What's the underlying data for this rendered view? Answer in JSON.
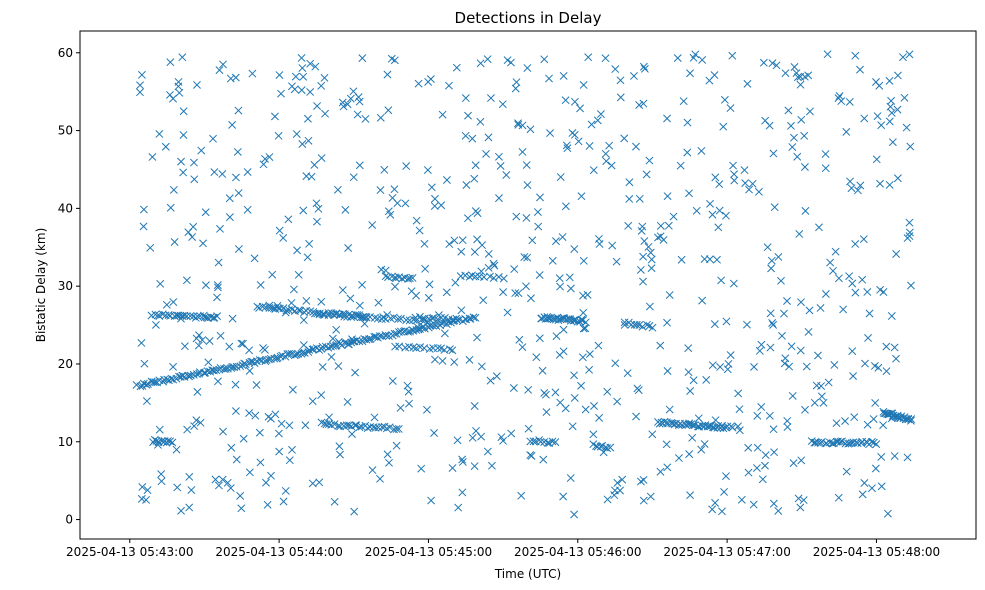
{
  "chart_data": {
    "type": "scatter",
    "title": "Detections in Delay",
    "xlabel": "Time (UTC)",
    "ylabel": "Bistatic Delay (km)",
    "marker": "x",
    "color": "#1f77b4",
    "xlim_seconds_from_0543": [
      -20,
      340
    ],
    "ylim": [
      -2.5,
      62.8
    ],
    "x_ticks": [
      {
        "value": 0,
        "label": "2025-04-13 05:43:00"
      },
      {
        "value": 60,
        "label": "2025-04-13 05:44:00"
      },
      {
        "value": 120,
        "label": "2025-04-13 05:45:00"
      },
      {
        "value": 180,
        "label": "2025-04-13 05:46:00"
      },
      {
        "value": 240,
        "label": "2025-04-13 05:47:00"
      },
      {
        "value": 300,
        "label": "2025-04-13 05:48:00"
      }
    ],
    "y_ticks": [
      {
        "value": 0,
        "label": "0"
      },
      {
        "value": 10,
        "label": "10"
      },
      {
        "value": 20,
        "label": "20"
      },
      {
        "value": 30,
        "label": "30"
      },
      {
        "value": 40,
        "label": "40"
      },
      {
        "value": 50,
        "label": "50"
      },
      {
        "value": 60,
        "label": "60"
      }
    ],
    "time_range_seconds": [
      3,
      314
    ],
    "approx_noise_points": 780,
    "tracks": [
      {
        "name": "rising track",
        "t": [
          3,
          139
        ],
        "delay": [
          17.2,
          26.0
        ],
        "points": 150
      },
      {
        "name": "track 26 km (start)",
        "t": [
          9,
          35
        ],
        "delay": [
          26.3,
          26.0
        ],
        "points": 25
      },
      {
        "name": "track ~27 km",
        "t": [
          51,
          95
        ],
        "delay": [
          27.4,
          26.0
        ],
        "points": 38
      },
      {
        "name": "track ~26 km",
        "t": [
          75,
          120
        ],
        "delay": [
          26.5,
          25.5
        ],
        "points": 30
      },
      {
        "name": "track 31 km",
        "t": [
          104,
          114
        ],
        "delay": [
          31.2,
          31.0
        ],
        "points": 10
      },
      {
        "name": "track 22 km",
        "t": [
          107,
          130
        ],
        "delay": [
          22.2,
          21.8
        ],
        "points": 15
      },
      {
        "name": "track 26 km (mid)",
        "t": [
          115,
          130
        ],
        "delay": [
          26.0,
          25.8
        ],
        "points": 10
      },
      {
        "name": "track 31 km (mid)",
        "t": [
          133,
          150
        ],
        "delay": [
          31.3,
          31.0
        ],
        "points": 10
      },
      {
        "name": "track 26 km (late)",
        "t": [
          165,
          183
        ],
        "delay": [
          26.0,
          25.5
        ],
        "points": 30
      },
      {
        "name": "track 12 km (early)",
        "t": [
          78,
          108
        ],
        "delay": [
          12.2,
          11.7
        ],
        "points": 28
      },
      {
        "name": "track 10 km (early)",
        "t": [
          9,
          17
        ],
        "delay": [
          10.1,
          9.9
        ],
        "points": 12
      },
      {
        "name": "track 10 km (mid)",
        "t": [
          161,
          171
        ],
        "delay": [
          10.2,
          9.9
        ],
        "points": 10
      },
      {
        "name": "track 9.5 km",
        "t": [
          186,
          193
        ],
        "delay": [
          9.6,
          9.2
        ],
        "points": 8
      },
      {
        "name": "track 12 km (late)",
        "t": [
          212,
          242
        ],
        "delay": [
          12.5,
          11.8
        ],
        "points": 40
      },
      {
        "name": "track 13 km (end)",
        "t": [
          303,
          314
        ],
        "delay": [
          13.8,
          12.8
        ],
        "points": 25
      },
      {
        "name": "track 10 km (end)",
        "t": [
          274,
          300
        ],
        "delay": [
          10.0,
          9.8
        ],
        "points": 30
      },
      {
        "name": "track 25 km",
        "t": [
          199,
          210
        ],
        "delay": [
          25.2,
          24.8
        ],
        "points": 10
      }
    ]
  }
}
